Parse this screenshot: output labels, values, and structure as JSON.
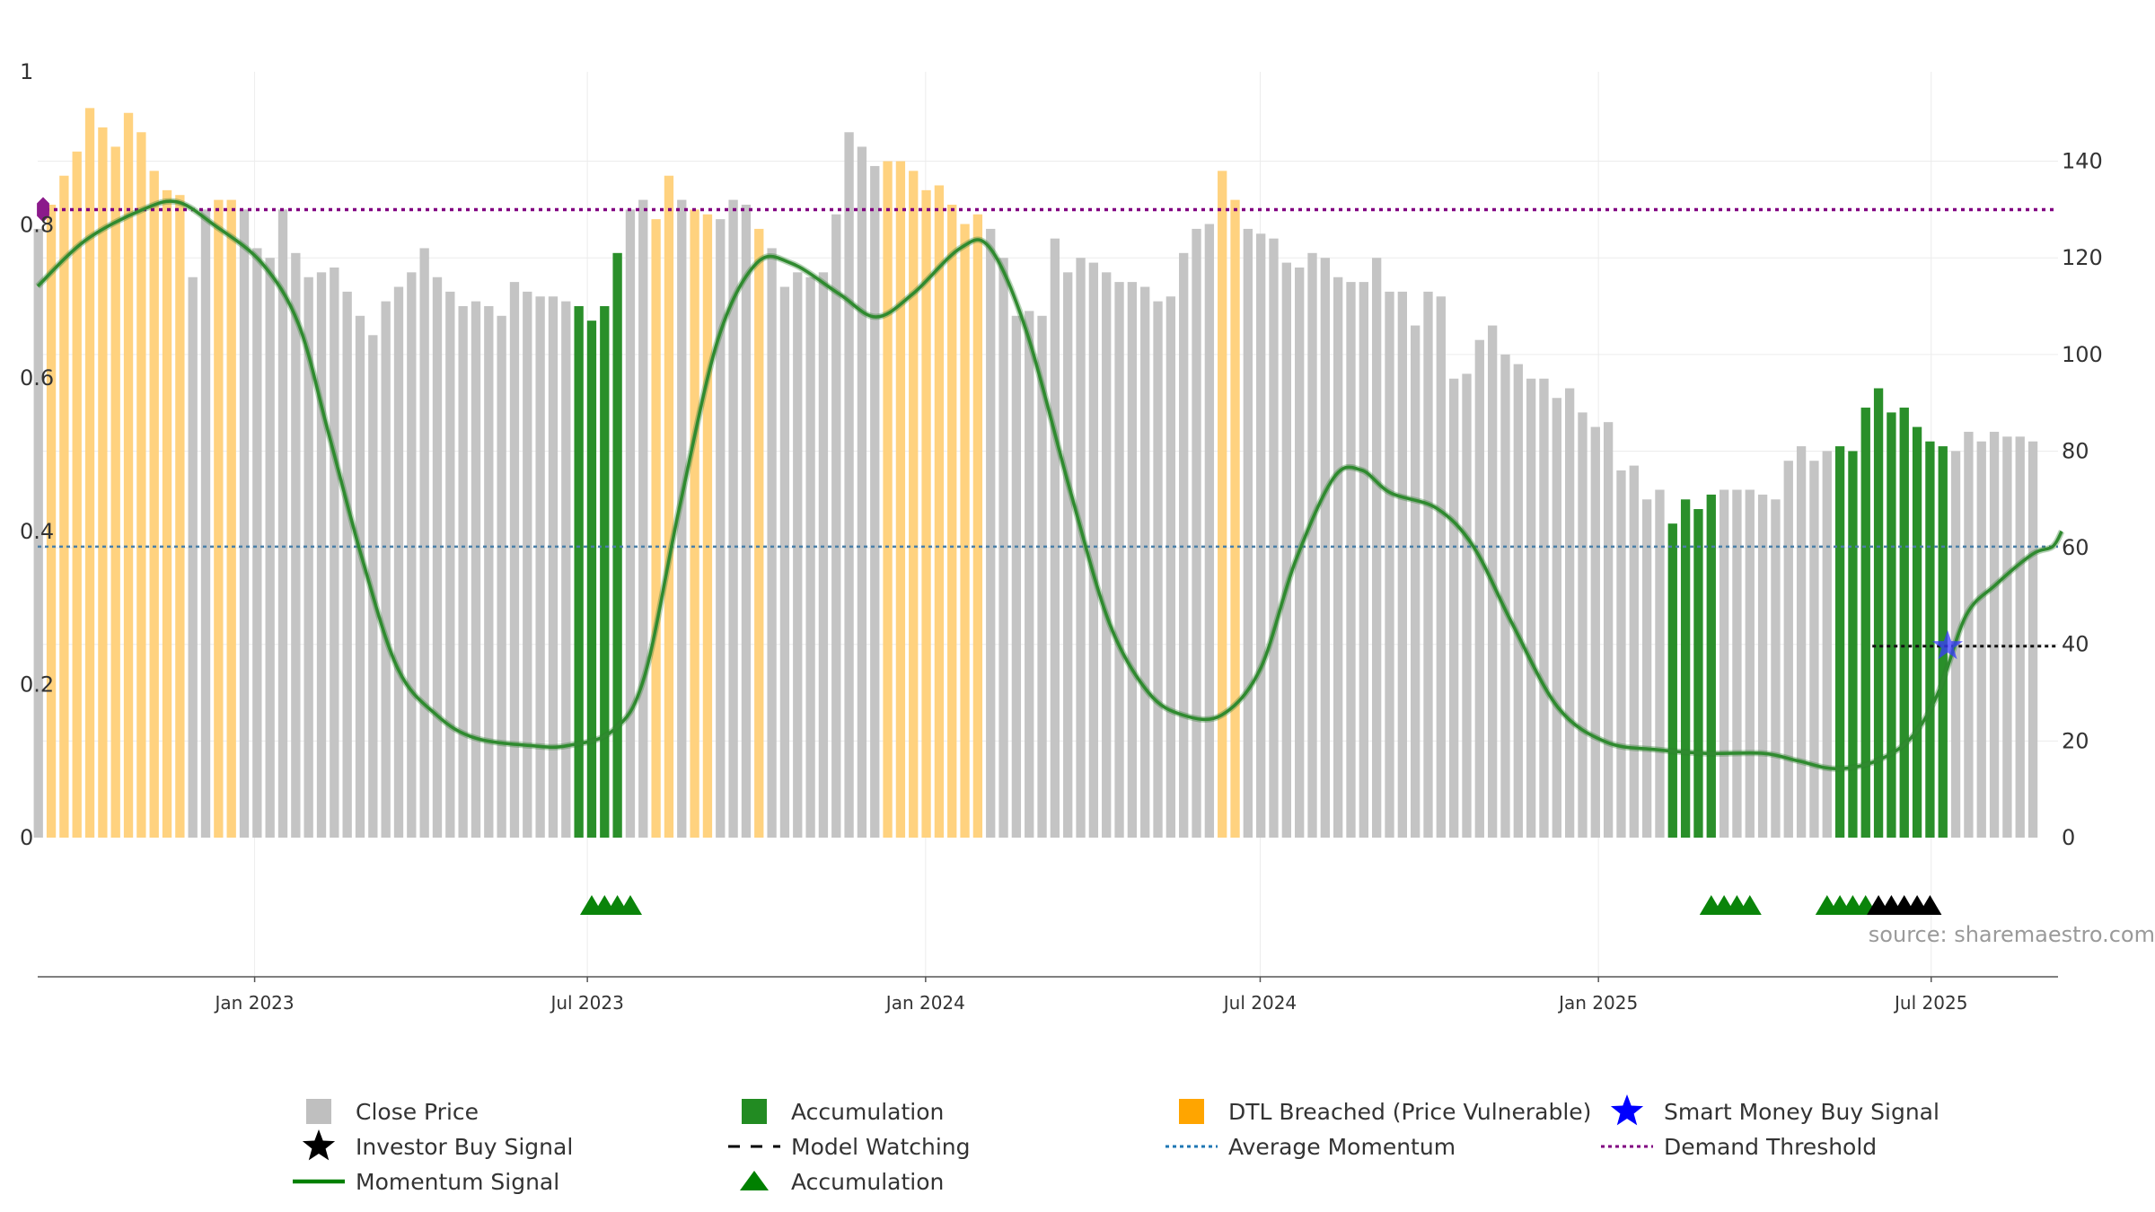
{
  "chart_data": {
    "type": "bar",
    "source": "source: sharemaestro.com",
    "left_axis": {
      "ylim": [
        0,
        1
      ],
      "ticks": [
        0,
        0.2,
        0.4,
        0.6,
        0.8,
        1
      ],
      "tick_labels": [
        "0",
        "0.2",
        "0.4",
        "0.6",
        "0.8",
        "1"
      ]
    },
    "right_axis": {
      "ylim": [
        0,
        158.5
      ],
      "ticks": [
        0,
        20,
        40,
        60,
        80,
        100,
        120,
        140
      ],
      "tick_labels": [
        "0",
        "20",
        "40",
        "60",
        "80",
        "100",
        "120",
        "140"
      ]
    },
    "x_axis": {
      "start": "2022-09-05",
      "end": "2025-09-08",
      "ticks": [
        "2023-01-01",
        "2023-07-01",
        "2024-01-01",
        "2024-07-01",
        "2025-01-01",
        "2025-07-01"
      ],
      "tick_labels": [
        "Jan 2023",
        "Jul 2023",
        "Jan 2024",
        "Jul 2024",
        "Jan 2025",
        "Jul 2025"
      ]
    },
    "grid": true,
    "legend_position": "bottom",
    "weeks": {
      "start": "2022-09-05",
      "interval_days": 7,
      "close": [
        126,
        131,
        137,
        142,
        151,
        147,
        143,
        150,
        146,
        138,
        134,
        133,
        116,
        130,
        132,
        132,
        130,
        122,
        120,
        130,
        121,
        116,
        117,
        118,
        113,
        108,
        104,
        111,
        114,
        117,
        122,
        116,
        113,
        110,
        111,
        110,
        108,
        115,
        113,
        112,
        112,
        111,
        110,
        107,
        110,
        121,
        130,
        132,
        128,
        137,
        132,
        130,
        129,
        128,
        132,
        131,
        126,
        122,
        114,
        117,
        116,
        117,
        129,
        146,
        143,
        139,
        140,
        140,
        138,
        134,
        135,
        131,
        127,
        129,
        126,
        120,
        108,
        109,
        108,
        124,
        117,
        120,
        119,
        117,
        115,
        115,
        114,
        111,
        112,
        121,
        126,
        127,
        138,
        132,
        126,
        125,
        124,
        119,
        118,
        121,
        120,
        116,
        115,
        115,
        120,
        113,
        113,
        106,
        113,
        112,
        95,
        96,
        103,
        106,
        100,
        98,
        95,
        95,
        91,
        93,
        88,
        85,
        86,
        76,
        77,
        70,
        72,
        65,
        70,
        68,
        71,
        72,
        72,
        72,
        71,
        70,
        78,
        81,
        78,
        80,
        81,
        80,
        89,
        93,
        88,
        89,
        85,
        82,
        81,
        80,
        84,
        82,
        84,
        83,
        83,
        82
      ],
      "status": [
        "c",
        "d",
        "d",
        "d",
        "d",
        "d",
        "d",
        "d",
        "d",
        "d",
        "d",
        "d",
        "c",
        "c",
        "d",
        "d",
        "c",
        "c",
        "c",
        "c",
        "c",
        "c",
        "c",
        "c",
        "c",
        "c",
        "c",
        "c",
        "c",
        "c",
        "c",
        "c",
        "c",
        "c",
        "c",
        "c",
        "c",
        "c",
        "c",
        "c",
        "c",
        "c",
        "a",
        "a",
        "a",
        "a",
        "c",
        "c",
        "d",
        "d",
        "c",
        "d",
        "d",
        "c",
        "c",
        "c",
        "d",
        "c",
        "c",
        "c",
        "c",
        "c",
        "c",
        "c",
        "c",
        "c",
        "d",
        "d",
        "d",
        "d",
        "d",
        "d",
        "d",
        "d",
        "c",
        "c",
        "c",
        "c",
        "c",
        "c",
        "c",
        "c",
        "c",
        "c",
        "c",
        "c",
        "c",
        "c",
        "c",
        "c",
        "c",
        "c",
        "d",
        "d",
        "c",
        "c",
        "c",
        "c",
        "c",
        "c",
        "c",
        "c",
        "c",
        "c",
        "c",
        "c",
        "c",
        "c",
        "c",
        "c",
        "c",
        "c",
        "c",
        "c",
        "c",
        "c",
        "c",
        "c",
        "c",
        "c",
        "c",
        "c",
        "c",
        "c",
        "c",
        "c",
        "c",
        "a",
        "a",
        "a",
        "a",
        "c",
        "c",
        "c",
        "c",
        "c",
        "c",
        "c",
        "c",
        "c",
        "a",
        "a",
        "a",
        "a",
        "a",
        "a",
        "a",
        "a",
        "a",
        "c",
        "c",
        "c",
        "c",
        "c",
        "c",
        "c",
        "c",
        "c",
        "c",
        "c",
        "c"
      ]
    },
    "momentum_signal": [
      [
        "2022-09-05",
        0.72
      ],
      [
        "2022-10-01",
        0.78
      ],
      [
        "2022-11-01",
        0.82
      ],
      [
        "2022-11-20",
        0.83
      ],
      [
        "2022-12-10",
        0.8
      ],
      [
        "2023-01-05",
        0.75
      ],
      [
        "2023-01-25",
        0.67
      ],
      [
        "2023-02-10",
        0.53
      ],
      [
        "2023-03-01",
        0.36
      ],
      [
        "2023-03-20",
        0.22
      ],
      [
        "2023-04-10",
        0.16
      ],
      [
        "2023-05-01",
        0.13
      ],
      [
        "2023-06-01",
        0.12
      ],
      [
        "2023-06-20",
        0.12
      ],
      [
        "2023-07-15",
        0.14
      ],
      [
        "2023-08-01",
        0.21
      ],
      [
        "2023-08-20",
        0.43
      ],
      [
        "2023-09-10",
        0.65
      ],
      [
        "2023-10-01",
        0.75
      ],
      [
        "2023-10-20",
        0.75
      ],
      [
        "2023-11-15",
        0.71
      ],
      [
        "2023-12-05",
        0.68
      ],
      [
        "2023-12-25",
        0.71
      ],
      [
        "2024-01-20",
        0.77
      ],
      [
        "2024-02-05",
        0.77
      ],
      [
        "2024-02-25",
        0.66
      ],
      [
        "2024-03-20",
        0.45
      ],
      [
        "2024-04-10",
        0.28
      ],
      [
        "2024-05-01",
        0.19
      ],
      [
        "2024-05-20",
        0.16
      ],
      [
        "2024-06-10",
        0.16
      ],
      [
        "2024-07-01",
        0.22
      ],
      [
        "2024-07-20",
        0.36
      ],
      [
        "2024-08-10",
        0.47
      ],
      [
        "2024-08-25",
        0.48
      ],
      [
        "2024-09-10",
        0.45
      ],
      [
        "2024-10-05",
        0.43
      ],
      [
        "2024-10-25",
        0.38
      ],
      [
        "2024-11-15",
        0.28
      ],
      [
        "2024-12-10",
        0.17
      ],
      [
        "2025-01-05",
        0.125
      ],
      [
        "2025-02-01",
        0.115
      ],
      [
        "2025-03-01",
        0.11
      ],
      [
        "2025-04-01",
        0.11
      ],
      [
        "2025-04-20",
        0.1
      ],
      [
        "2025-05-10",
        0.09
      ],
      [
        "2025-06-01",
        0.1
      ],
      [
        "2025-06-20",
        0.13
      ],
      [
        "2025-07-05",
        0.19
      ],
      [
        "2025-07-20",
        0.29
      ],
      [
        "2025-08-05",
        0.33
      ],
      [
        "2025-08-25",
        0.37
      ],
      [
        "2025-09-05",
        0.38
      ],
      [
        "2025-09-10",
        0.4
      ]
    ],
    "average_momentum": 0.38,
    "demand_threshold": 0.82,
    "model_watching": {
      "from": "2025-05-30",
      "to": "2025-09-08",
      "value": 0.25
    },
    "smart_money_buy_signal": {
      "date": "2025-07-07",
      "value": 0.25
    },
    "threshold_marker": {
      "date": "2022-09-05",
      "value": 0.82
    },
    "accumulation_markers": [
      "2023-07-03",
      "2023-07-10",
      "2023-07-17",
      "2023-07-24",
      "2025-03-03",
      "2025-03-10",
      "2025-03-17",
      "2025-03-24",
      "2025-05-05",
      "2025-05-12",
      "2025-05-19",
      "2025-05-26"
    ],
    "investor_buy_markers": [
      "2025-06-02",
      "2025-06-09",
      "2025-06-16",
      "2025-06-23",
      "2025-06-30"
    ],
    "legend": [
      {
        "key": "close",
        "label": "Close Price",
        "swatch": "square",
        "color": "#bfbfbf"
      },
      {
        "key": "accum",
        "label": "Accumulation",
        "swatch": "square",
        "color": "#228b22"
      },
      {
        "key": "dtl",
        "label": "DTL Breached (Price Vulnerable)",
        "swatch": "square",
        "color": "#ffa500"
      },
      {
        "key": "smart",
        "label": "Smart Money Buy Signal",
        "swatch": "star",
        "color": "#0000ff"
      },
      {
        "key": "investor",
        "label": "Investor Buy Signal",
        "swatch": "star",
        "color": "#000000"
      },
      {
        "key": "watch",
        "label": "Model Watching",
        "swatch": "dash",
        "color": "#000000"
      },
      {
        "key": "avg",
        "label": "Average Momentum",
        "swatch": "dot",
        "color": "#1f77b4"
      },
      {
        "key": "demand",
        "label": "Demand Threshold",
        "swatch": "dot",
        "color": "#800080"
      },
      {
        "key": "momentum",
        "label": "Momentum Signal",
        "swatch": "line",
        "color": "#008000"
      },
      {
        "key": "accum_tri",
        "label": "Accumulation",
        "swatch": "triangle",
        "color": "#008000"
      }
    ]
  }
}
